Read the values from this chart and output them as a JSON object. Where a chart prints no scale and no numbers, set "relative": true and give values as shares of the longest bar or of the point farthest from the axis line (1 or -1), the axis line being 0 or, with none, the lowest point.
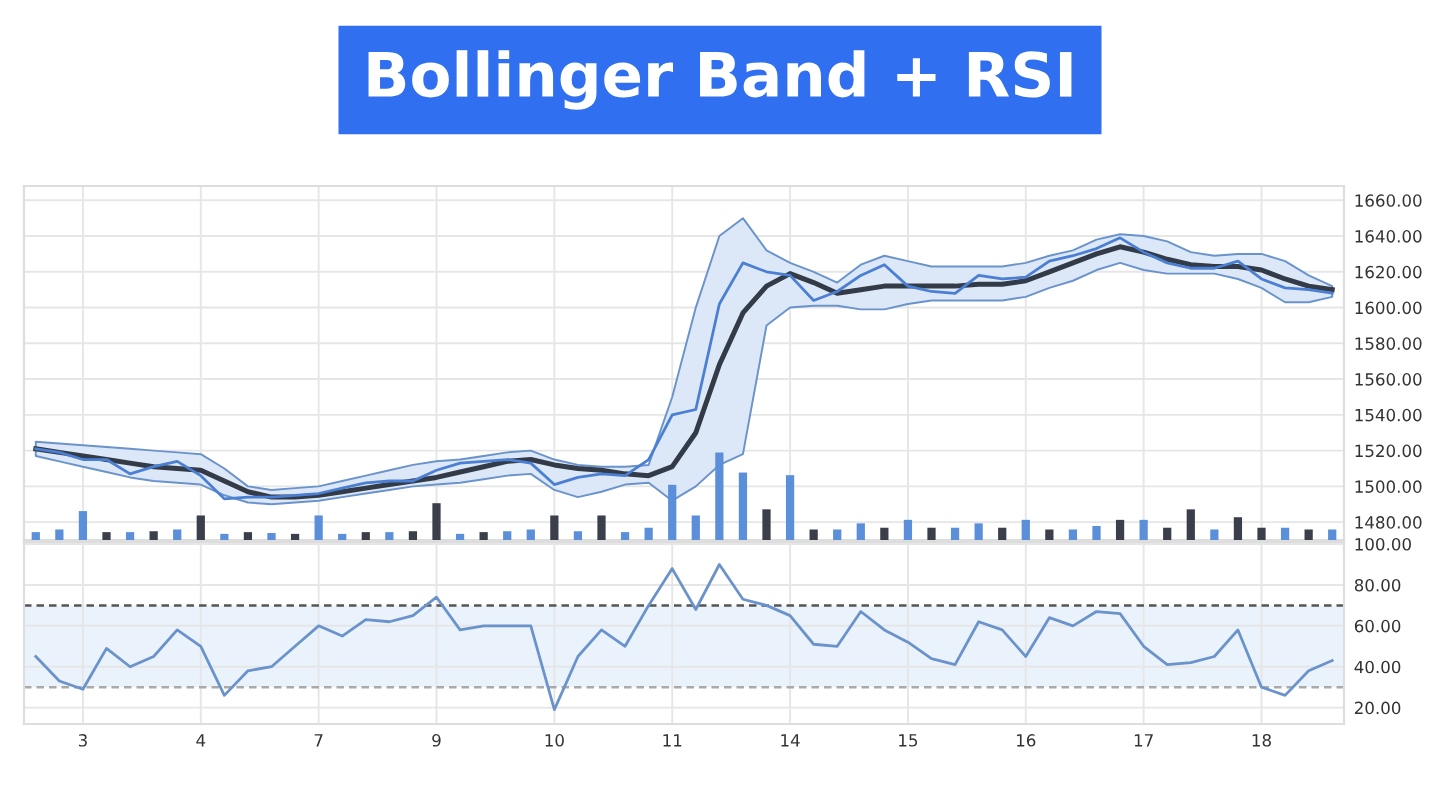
{
  "chart_data": [
    {
      "type": "line",
      "title": "Bollinger Band + RSI",
      "ylim": [
        1470,
        1668
      ],
      "categories": [
        null,
        null,
        "3",
        null,
        null,
        null,
        null,
        "4",
        null,
        null,
        null,
        null,
        "7",
        null,
        null,
        null,
        null,
        "9",
        null,
        null,
        null,
        null,
        "10",
        null,
        null,
        null,
        null,
        "11",
        null,
        null,
        null,
        null,
        "14",
        null,
        null,
        null,
        null,
        "15",
        null,
        null,
        null,
        null,
        "16",
        null,
        null,
        null,
        null,
        "17",
        null,
        null,
        null,
        null,
        "18",
        null,
        null,
        null
      ],
      "yticks": [
        {
          "value": 1480,
          "label": "1480.00"
        },
        {
          "value": 1500,
          "label": "1500.00"
        },
        {
          "value": 1520,
          "label": "1520.00"
        },
        {
          "value": 1540,
          "label": "1540.00"
        },
        {
          "value": 1560,
          "label": "1560.00"
        },
        {
          "value": 1580,
          "label": "1580.00"
        },
        {
          "value": 1600,
          "label": "1600.00"
        },
        {
          "value": 1620,
          "label": "1620.00"
        },
        {
          "value": 1640,
          "label": "1640.00"
        },
        {
          "value": 1660,
          "label": "1660.00"
        }
      ],
      "tick_labels": "y",
      "grid": true,
      "series": [
        {
          "color": "#333a48",
          "values": [
            1521,
            1519,
            1517,
            1515,
            1513,
            1511,
            1510,
            1509,
            1503,
            1497,
            1494,
            1494,
            1495,
            1497,
            1499,
            1501,
            1503,
            1505,
            1508,
            1511,
            1514,
            1515,
            1512,
            1510,
            1509,
            1507,
            1506,
            1511,
            1530,
            1568,
            1597,
            1612,
            1619,
            1614,
            1608,
            1610,
            1612,
            1612,
            1612,
            1612,
            1613,
            1613,
            1615,
            1620,
            1625,
            1630,
            1634,
            1631,
            1627,
            1624,
            1623,
            1623,
            1621,
            1616,
            1612,
            1610
          ],
          "upper": [
            1525,
            1524,
            1523,
            1522,
            1521,
            1520,
            1519,
            1518,
            1510,
            1500,
            1498,
            1499,
            1500,
            1503,
            1506,
            1509,
            1512,
            1514,
            1515,
            1517,
            1519,
            1520,
            1515,
            1512,
            1511,
            1511,
            1512,
            1550,
            1600,
            1640,
            1650,
            1632,
            1625,
            1620,
            1614,
            1624,
            1629,
            1626,
            1623,
            1623,
            1623,
            1623,
            1625,
            1629,
            1632,
            1638,
            1641,
            1640,
            1637,
            1631,
            1629,
            1630,
            1630,
            1626,
            1618,
            1612
          ],
          "lower": [
            1517,
            1514,
            1511,
            1508,
            1505,
            1503,
            1502,
            1501,
            1495,
            1491,
            1490,
            1491,
            1492,
            1494,
            1496,
            1498,
            1500,
            1501,
            1502,
            1504,
            1506,
            1507,
            1498,
            1494,
            1497,
            1501,
            1502,
            1492,
            1500,
            1512,
            1518,
            1590,
            1600,
            1601,
            1601,
            1599,
            1599,
            1602,
            1604,
            1604,
            1604,
            1604,
            1606,
            1611,
            1615,
            1621,
            1625,
            1621,
            1619,
            1619,
            1619,
            1616,
            1611,
            1603,
            1603,
            1606
          ]
        },
        {
          "color": "#4a7fd4",
          "values": [
            1521,
            1519,
            1515,
            1515,
            1507,
            1511,
            1514,
            1506,
            1493,
            1494,
            1494,
            1495,
            1496,
            1499,
            1502,
            1503,
            1503,
            1509,
            1513,
            1514,
            1515,
            1513,
            1501,
            1505,
            1507,
            1506,
            1515,
            1540,
            1543,
            1602,
            1625,
            1620,
            1618,
            1604,
            1609,
            1618,
            1624,
            1612,
            1609,
            1608,
            1618,
            1616,
            1617,
            1626,
            1629,
            1633,
            1639,
            1631,
            1625,
            1622,
            1622,
            1626,
            1616,
            1611,
            1610,
            1608
          ]
        }
      ]
    },
    {
      "type": "bar",
      "relative": true,
      "tick_labels": false,
      "categories": [
        null,
        null,
        null,
        null,
        null,
        null,
        null,
        null,
        null,
        null,
        null,
        null,
        null,
        null,
        null,
        null,
        null,
        null,
        null,
        null,
        null,
        null,
        null,
        null,
        null,
        null,
        null,
        null,
        null,
        null,
        null,
        null,
        null,
        null,
        null,
        null,
        null,
        null,
        null,
        null,
        null,
        null,
        null,
        null,
        null,
        null,
        null,
        null,
        null,
        null,
        null,
        null,
        null,
        null,
        null,
        null
      ],
      "values": [
        0.09,
        0.12,
        0.33,
        0.09,
        0.09,
        0.1,
        0.12,
        0.28,
        0.07,
        0.09,
        0.08,
        0.07,
        0.28,
        0.07,
        0.09,
        0.09,
        0.1,
        0.42,
        0.07,
        0.09,
        0.1,
        0.12,
        0.28,
        0.1,
        0.28,
        0.09,
        0.14,
        0.63,
        0.28,
        1,
        0.77,
        0.35,
        0.74,
        0.12,
        0.12,
        0.19,
        0.14,
        0.23,
        0.14,
        0.14,
        0.19,
        0.14,
        0.23,
        0.12,
        0.12,
        0.16,
        0.23,
        0.23,
        0.14,
        0.35,
        0.12,
        0.26,
        0.14,
        0.14,
        0.12,
        0.12
      ],
      "colors": [
        "#5b8fd9",
        "#5b8fd9",
        "#5b8fd9",
        "#3a3f4b",
        "#5b8fd9",
        "#3a3f4b",
        "#5b8fd9",
        "#3a3f4b",
        "#5b8fd9",
        "#3a3f4b",
        "#5b8fd9",
        "#3a3f4b",
        "#5b8fd9",
        "#5b8fd9",
        "#3a3f4b",
        "#5b8fd9",
        "#3a3f4b",
        "#3a3f4b",
        "#5b8fd9",
        "#3a3f4b",
        "#5b8fd9",
        "#5b8fd9",
        "#3a3f4b",
        "#5b8fd9",
        "#3a3f4b",
        "#5b8fd9",
        "#5b8fd9",
        "#5b8fd9",
        "#5b8fd9",
        "#5b8fd9",
        "#5b8fd9",
        "#3a3f4b",
        "#5b8fd9",
        "#3a3f4b",
        "#5b8fd9",
        "#5b8fd9",
        "#3a3f4b",
        "#5b8fd9",
        "#3a3f4b",
        "#5b8fd9",
        "#5b8fd9",
        "#3a3f4b",
        "#5b8fd9",
        "#3a3f4b",
        "#5b8fd9",
        "#5b8fd9",
        "#3a3f4b",
        "#5b8fd9",
        "#3a3f4b",
        "#3a3f4b",
        "#5b8fd9",
        "#3a3f4b",
        "#3a3f4b",
        "#5b8fd9",
        "#3a3f4b",
        "#5b8fd9"
      ]
    },
    {
      "type": "line",
      "ylim": [
        12,
        101
      ],
      "grid": true,
      "categories": [
        null,
        null,
        "3",
        null,
        null,
        null,
        null,
        "4",
        null,
        null,
        null,
        null,
        "7",
        null,
        null,
        null,
        null,
        "9",
        null,
        null,
        null,
        null,
        "10",
        null,
        null,
        null,
        null,
        "11",
        null,
        null,
        null,
        null,
        "14",
        null,
        null,
        null,
        null,
        "15",
        null,
        null,
        null,
        null,
        "16",
        null,
        null,
        null,
        null,
        "17",
        null,
        null,
        null,
        null,
        "18",
        null,
        null,
        null
      ],
      "yticks": [
        {
          "value": 20,
          "label": "20.00"
        },
        {
          "value": 40,
          "label": "40.00"
        },
        {
          "value": 60,
          "label": "60.00"
        },
        {
          "value": 80,
          "label": "80.00"
        },
        {
          "value": 100,
          "label": "100.00"
        }
      ],
      "bands": [
        {
          "axis": "y",
          "from": 30,
          "to": 70,
          "color": "#eaf2fc"
        }
      ],
      "ref_lines": [
        {
          "axis": "y",
          "value": 70,
          "color": "#555555",
          "line_style": "dashed"
        },
        {
          "axis": "y",
          "value": 30,
          "color": "#aaaaaa",
          "line_style": "dashed"
        }
      ],
      "series": [
        {
          "color": "#6a93cc",
          "values": [
            45,
            33,
            29,
            49,
            40,
            45,
            58,
            50,
            26,
            38,
            40,
            50,
            60,
            55,
            63,
            62,
            65,
            74,
            58,
            60,
            60,
            60,
            19,
            45,
            58,
            50,
            70,
            88,
            68,
            90,
            73,
            70,
            65,
            51,
            50,
            67,
            58,
            52,
            44,
            41,
            62,
            58,
            45,
            64,
            60,
            67,
            66,
            50,
            41,
            42,
            45,
            58,
            30,
            26,
            38,
            43
          ]
        }
      ]
    }
  ]
}
